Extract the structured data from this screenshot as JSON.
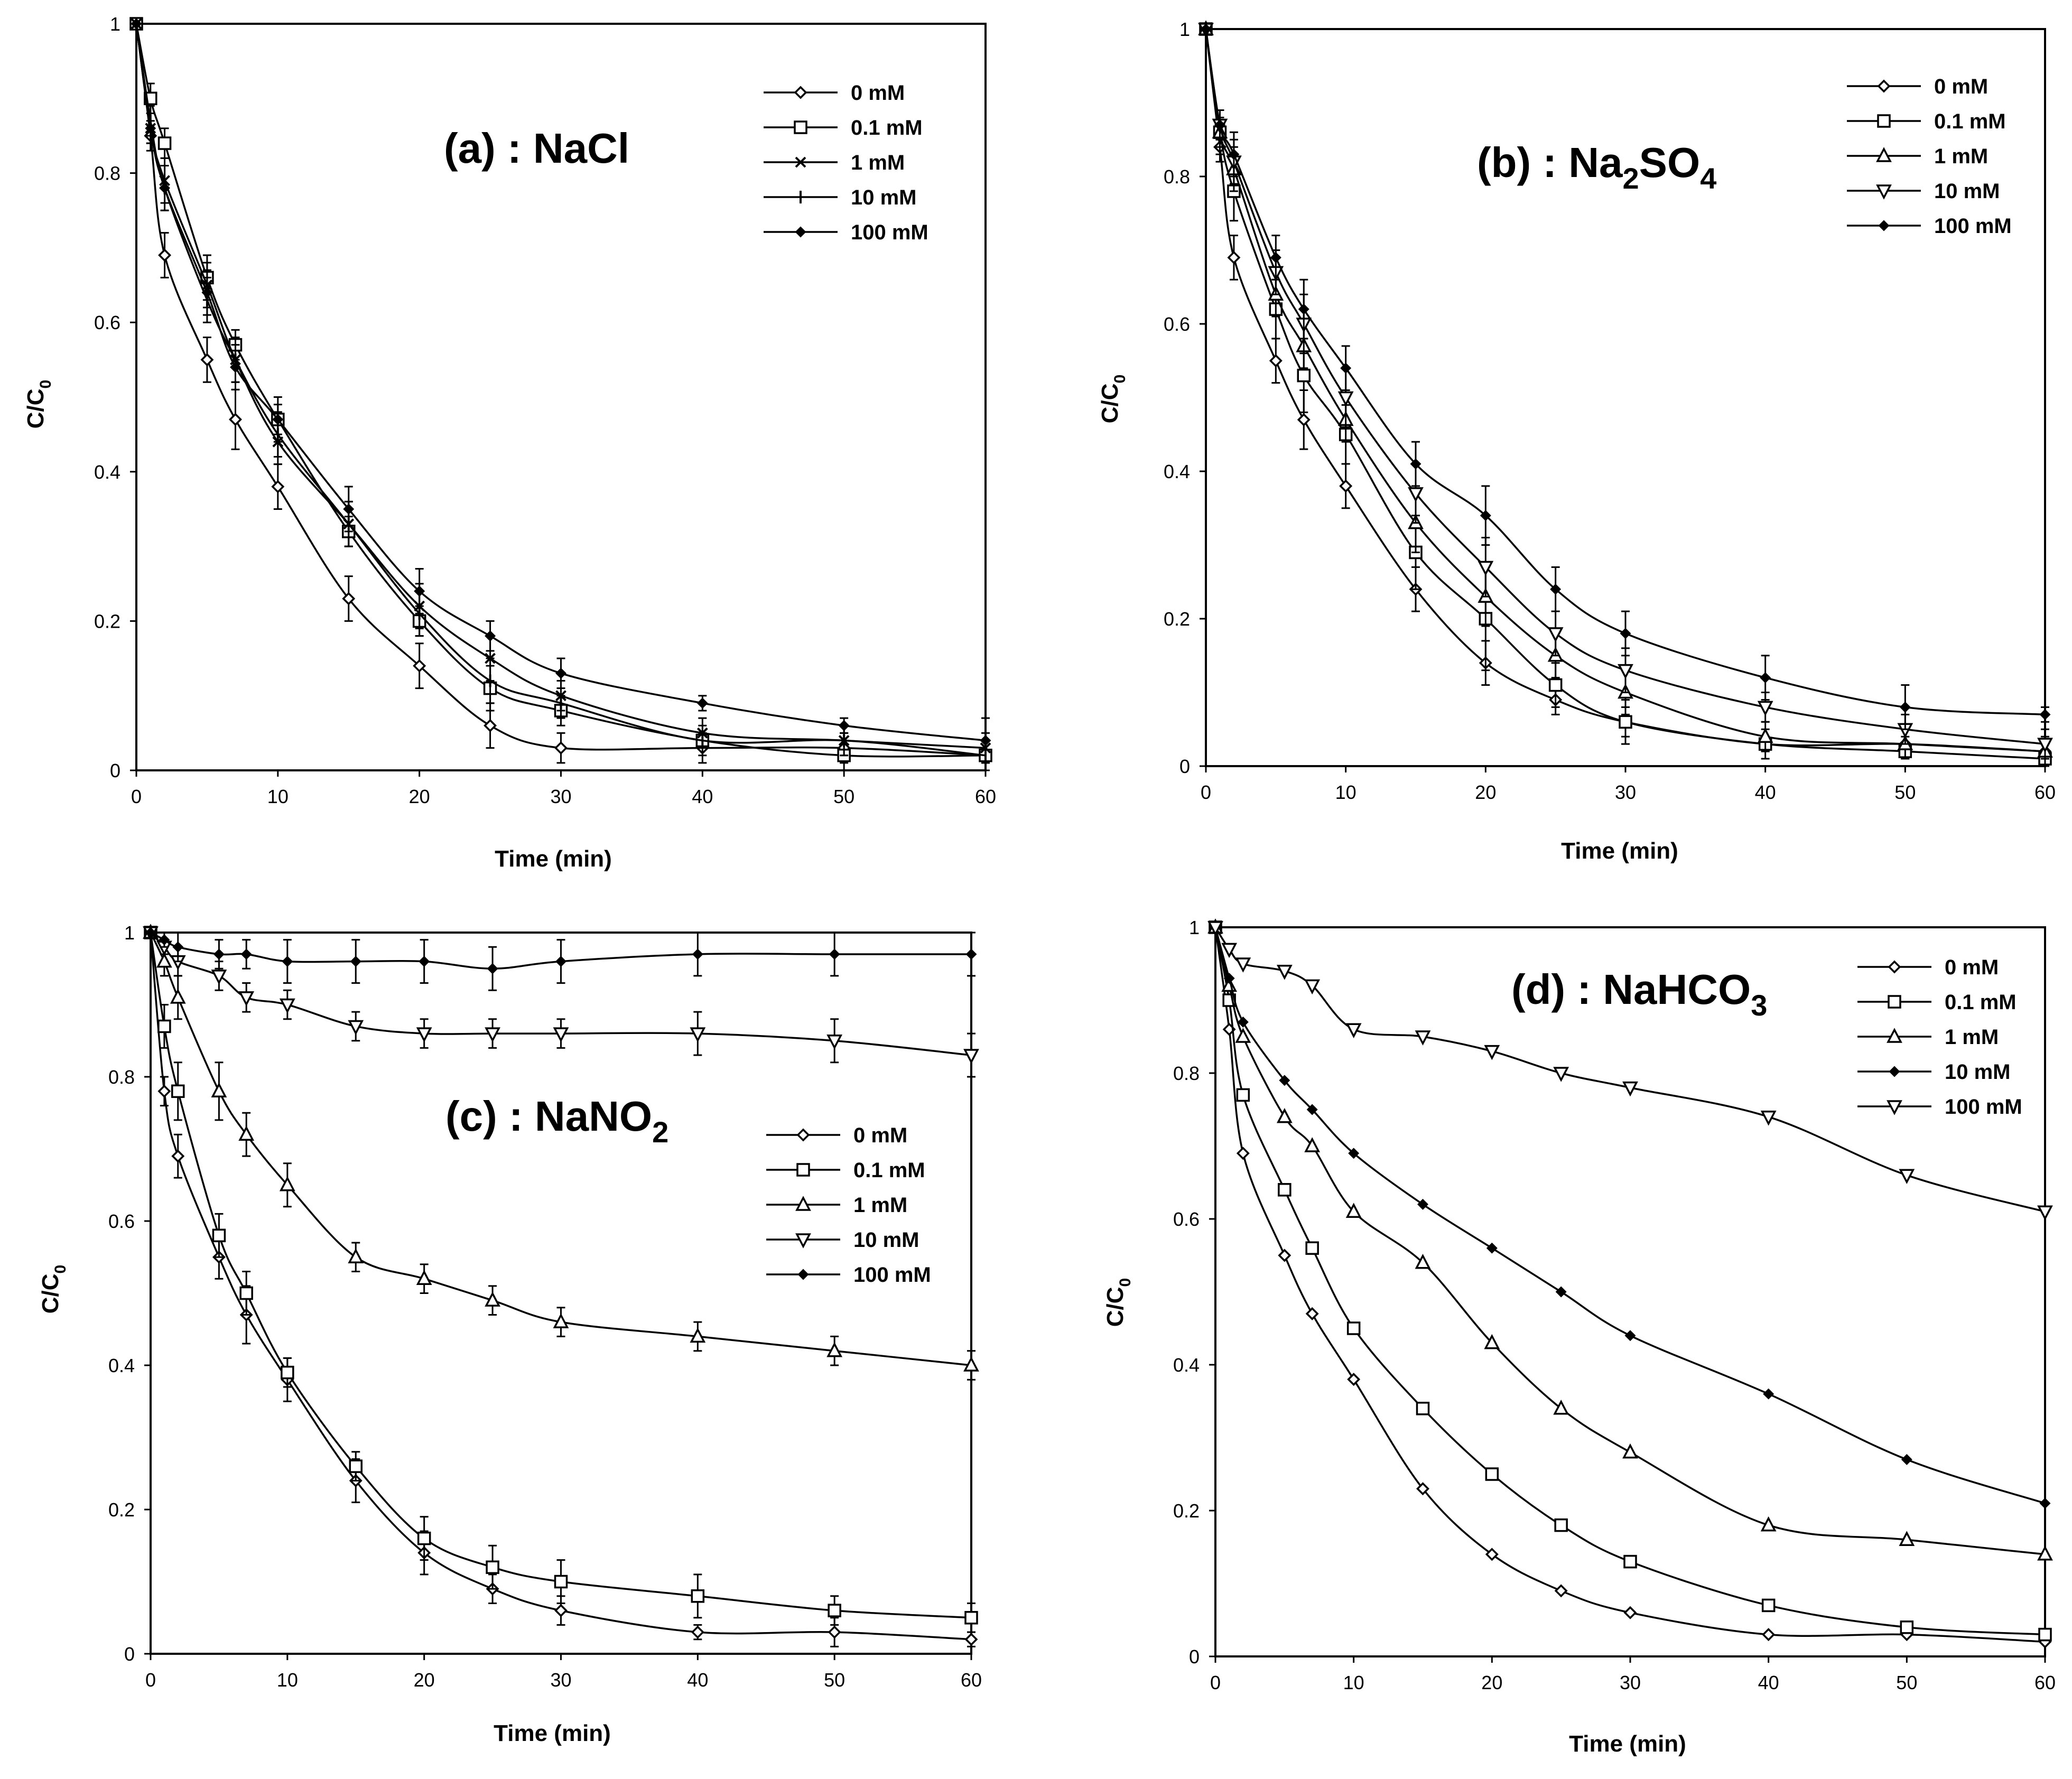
{
  "chart_data": [
    {
      "type": "line",
      "panel": "a",
      "title": "(a) : NaCl",
      "title_main": "(a) : NaCl",
      "title_sub": "",
      "title_tail": "",
      "xlabel": "Time (min)",
      "ylabel": "C/C",
      "ylabel_sub": "0",
      "xlim": [
        0,
        60
      ],
      "ylim": [
        0,
        1
      ],
      "xticks": [
        0,
        10,
        20,
        30,
        40,
        50,
        60
      ],
      "yticks": [
        0,
        0.2,
        0.4,
        0.6,
        0.8,
        1
      ],
      "legend_position": "top-right",
      "x": [
        0,
        1,
        2,
        5,
        7,
        10,
        15,
        20,
        25,
        30,
        40,
        50,
        60
      ],
      "series": [
        {
          "name": "0 mM",
          "marker": "diamond",
          "values": [
            1,
            0.85,
            0.69,
            0.55,
            0.47,
            0.38,
            0.23,
            0.14,
            0.06,
            0.03,
            0.03,
            0.03,
            0.02
          ],
          "errors": [
            0,
            0.02,
            0.03,
            0.03,
            0.04,
            0.03,
            0.03,
            0.03,
            0.03,
            0.02,
            0.02,
            0.02,
            0.02
          ]
        },
        {
          "name": "0.1 mM",
          "marker": "square",
          "values": [
            1,
            0.9,
            0.84,
            0.66,
            0.57,
            0.47,
            0.32,
            0.2,
            0.11,
            0.08,
            0.04,
            0.02,
            0.02
          ],
          "errors": [
            0,
            0.02,
            0.02,
            0.03,
            0.02,
            0.02,
            0.02,
            0.02,
            0.03,
            0.02,
            0.01,
            0.02,
            0.02
          ]
        },
        {
          "name": "1 mM",
          "marker": "x",
          "values": [
            1,
            0.86,
            0.79,
            0.65,
            0.55,
            0.44,
            0.33,
            0.22,
            0.15,
            0.1,
            0.05,
            0.04,
            0.03
          ],
          "errors": [
            0,
            0.02,
            0.03,
            0.03,
            0.03,
            0.03,
            0.03,
            0.03,
            0.03,
            0.02,
            0.02,
            0.02,
            0.02
          ]
        },
        {
          "name": "10 mM",
          "marker": "plus",
          "values": [
            1,
            0.87,
            0.78,
            0.63,
            0.55,
            0.45,
            0.33,
            0.21,
            0.12,
            0.09,
            0.04,
            0.04,
            0.02
          ],
          "errors": [
            0,
            0.02,
            0.03,
            0.03,
            0.03,
            0.03,
            0.03,
            0.03,
            0.03,
            0.02,
            0.02,
            0.02,
            0.02
          ]
        },
        {
          "name": "100 mM",
          "marker": "diamond-small",
          "values": [
            1,
            0.86,
            0.78,
            0.64,
            0.54,
            0.47,
            0.35,
            0.24,
            0.18,
            0.13,
            0.09,
            0.06,
            0.04
          ],
          "errors": [
            0,
            0.02,
            0.03,
            0.03,
            0.03,
            0.03,
            0.03,
            0.03,
            0.02,
            0.02,
            0.01,
            0.01,
            0.03
          ]
        }
      ]
    },
    {
      "type": "line",
      "panel": "b",
      "title": "(b) : Na2SO4",
      "title_main": "(b) : Na",
      "title_sub": "2",
      "title_tail": "SO",
      "title_sub2": "4",
      "xlabel": "Time (min)",
      "ylabel": "C/C",
      "ylabel_sub": "0",
      "xlim": [
        0,
        60
      ],
      "ylim": [
        0,
        1
      ],
      "xticks": [
        0,
        10,
        20,
        30,
        40,
        50,
        60
      ],
      "yticks": [
        0,
        0.2,
        0.4,
        0.6,
        0.8,
        1
      ],
      "legend_position": "top-right",
      "x": [
        0,
        1,
        2,
        5,
        7,
        10,
        15,
        20,
        25,
        30,
        40,
        50,
        60
      ],
      "series": [
        {
          "name": "0 mM",
          "marker": "diamond",
          "values": [
            1,
            0.84,
            0.69,
            0.55,
            0.47,
            0.38,
            0.24,
            0.14,
            0.09,
            0.06,
            0.03,
            0.03,
            0.02
          ],
          "errors": [
            0,
            0.02,
            0.03,
            0.03,
            0.04,
            0.03,
            0.03,
            0.03,
            0.02,
            0.02,
            0.01,
            0.01,
            0.01
          ]
        },
        {
          "name": "0.1 mM",
          "marker": "square",
          "values": [
            1,
            0.86,
            0.78,
            0.62,
            0.53,
            0.45,
            0.29,
            0.2,
            0.11,
            0.06,
            0.03,
            0.02,
            0.01
          ],
          "errors": [
            0,
            0.03,
            0.04,
            0.04,
            0.05,
            0.04,
            0.05,
            0.07,
            0.03,
            0.03,
            0.02,
            0.01,
            0.01
          ]
        },
        {
          "name": "1 mM",
          "marker": "triangle-up",
          "values": [
            1,
            0.86,
            0.81,
            0.64,
            0.57,
            0.47,
            0.33,
            0.23,
            0.15,
            0.1,
            0.04,
            0.03,
            0.02
          ],
          "errors": [
            0,
            0.02,
            0.03,
            0.03,
            0.03,
            0.03,
            0.04,
            0.04,
            0.03,
            0.03,
            0.02,
            0.02,
            0.02
          ]
        },
        {
          "name": "10 mM",
          "marker": "triangle-down",
          "values": [
            1,
            0.87,
            0.82,
            0.67,
            0.6,
            0.5,
            0.37,
            0.27,
            0.18,
            0.13,
            0.08,
            0.05,
            0.03
          ],
          "errors": [
            0,
            0.02,
            0.03,
            0.03,
            0.04,
            0.04,
            0.04,
            0.04,
            0.03,
            0.03,
            0.02,
            0.02,
            0.02
          ]
        },
        {
          "name": "100 mM",
          "marker": "diamond-small",
          "values": [
            1,
            0.87,
            0.83,
            0.69,
            0.62,
            0.54,
            0.41,
            0.34,
            0.24,
            0.18,
            0.12,
            0.08,
            0.07
          ],
          "errors": [
            0,
            0.02,
            0.03,
            0.03,
            0.04,
            0.03,
            0.03,
            0.04,
            0.03,
            0.03,
            0.03,
            0.03,
            0.01
          ]
        }
      ]
    },
    {
      "type": "line",
      "panel": "c",
      "title": "(c) : NaNO2",
      "title_main": "(c) : NaNO",
      "title_sub": "2",
      "title_tail": "",
      "xlabel": "Time (min)",
      "ylabel": "C/C",
      "ylabel_sub": "0",
      "xlim": [
        0,
        60
      ],
      "ylim": [
        0,
        1
      ],
      "xticks": [
        0,
        10,
        20,
        30,
        40,
        50,
        60
      ],
      "yticks": [
        0,
        0.2,
        0.4,
        0.6,
        0.8,
        1
      ],
      "legend_position": "right",
      "x": [
        0,
        1,
        2,
        5,
        7,
        10,
        15,
        20,
        25,
        30,
        40,
        50,
        60
      ],
      "series": [
        {
          "name": "0 mM",
          "marker": "diamond",
          "values": [
            1,
            0.78,
            0.69,
            0.55,
            0.47,
            0.38,
            0.24,
            0.14,
            0.09,
            0.06,
            0.03,
            0.03,
            0.02
          ],
          "errors": [
            0,
            0.02,
            0.03,
            0.03,
            0.04,
            0.03,
            0.03,
            0.03,
            0.02,
            0.02,
            0.01,
            0.02,
            0.01
          ]
        },
        {
          "name": "0.1 mM",
          "marker": "square",
          "values": [
            1,
            0.87,
            0.78,
            0.58,
            0.5,
            0.39,
            0.26,
            0.16,
            0.12,
            0.1,
            0.08,
            0.06,
            0.05
          ],
          "errors": [
            0,
            0.03,
            0.04,
            0.03,
            0.03,
            0.02,
            0.02,
            0.03,
            0.03,
            0.03,
            0.03,
            0.02,
            0.02
          ]
        },
        {
          "name": "1 mM",
          "marker": "triangle-up",
          "values": [
            1,
            0.96,
            0.91,
            0.78,
            0.72,
            0.65,
            0.55,
            0.52,
            0.49,
            0.46,
            0.44,
            0.42,
            0.4
          ],
          "errors": [
            0,
            0.02,
            0.03,
            0.04,
            0.03,
            0.03,
            0.02,
            0.02,
            0.02,
            0.02,
            0.02,
            0.02,
            0.02
          ]
        },
        {
          "name": "10 mM",
          "marker": "triangle-down",
          "values": [
            1,
            0.98,
            0.96,
            0.94,
            0.91,
            0.9,
            0.87,
            0.86,
            0.86,
            0.86,
            0.86,
            0.85,
            0.83
          ],
          "errors": [
            0,
            0.01,
            0.02,
            0.02,
            0.02,
            0.02,
            0.02,
            0.02,
            0.02,
            0.02,
            0.03,
            0.03,
            0.03
          ]
        },
        {
          "name": "100 mM",
          "marker": "diamond-small",
          "values": [
            1,
            0.99,
            0.98,
            0.97,
            0.97,
            0.96,
            0.96,
            0.96,
            0.95,
            0.96,
            0.97,
            0.97,
            0.97
          ],
          "errors": [
            0,
            0.01,
            0.02,
            0.02,
            0.02,
            0.03,
            0.03,
            0.03,
            0.03,
            0.03,
            0.03,
            0.03,
            0.03
          ]
        }
      ]
    },
    {
      "type": "line",
      "panel": "d",
      "title": "(d) : NaHCO3",
      "title_main": "(d) : NaHCO",
      "title_sub": "3",
      "title_tail": "",
      "xlabel": "Time (min)",
      "ylabel": "C/C",
      "ylabel_sub": "0",
      "xlim": [
        0,
        60
      ],
      "ylim": [
        0,
        1
      ],
      "xticks": [
        0,
        10,
        20,
        30,
        40,
        50,
        60
      ],
      "yticks": [
        0,
        0.2,
        0.4,
        0.6,
        0.8,
        1
      ],
      "legend_position": "top-right",
      "x": [
        0,
        1,
        2,
        5,
        7,
        10,
        15,
        20,
        25,
        30,
        40,
        50,
        60
      ],
      "series": [
        {
          "name": "0 mM",
          "marker": "diamond",
          "values": [
            1,
            0.86,
            0.69,
            0.55,
            0.47,
            0.38,
            0.23,
            0.14,
            0.09,
            0.06,
            0.03,
            0.03,
            0.02
          ]
        },
        {
          "name": "0.1 mM",
          "marker": "square",
          "values": [
            1,
            0.9,
            0.77,
            0.64,
            0.56,
            0.45,
            0.34,
            0.25,
            0.18,
            0.13,
            0.07,
            0.04,
            0.03
          ]
        },
        {
          "name": "1 mM",
          "marker": "triangle-up",
          "values": [
            1,
            0.92,
            0.85,
            0.74,
            0.7,
            0.61,
            0.54,
            0.43,
            0.34,
            0.28,
            0.18,
            0.16,
            0.14
          ]
        },
        {
          "name": "10 mM",
          "marker": "diamond-small",
          "values": [
            1,
            0.93,
            0.87,
            0.79,
            0.75,
            0.69,
            0.62,
            0.56,
            0.5,
            0.44,
            0.36,
            0.27,
            0.21
          ]
        },
        {
          "name": "100 mM",
          "marker": "triangle-down",
          "values": [
            1,
            0.97,
            0.95,
            0.94,
            0.92,
            0.86,
            0.85,
            0.83,
            0.8,
            0.78,
            0.74,
            0.66,
            0.61
          ]
        }
      ]
    }
  ]
}
